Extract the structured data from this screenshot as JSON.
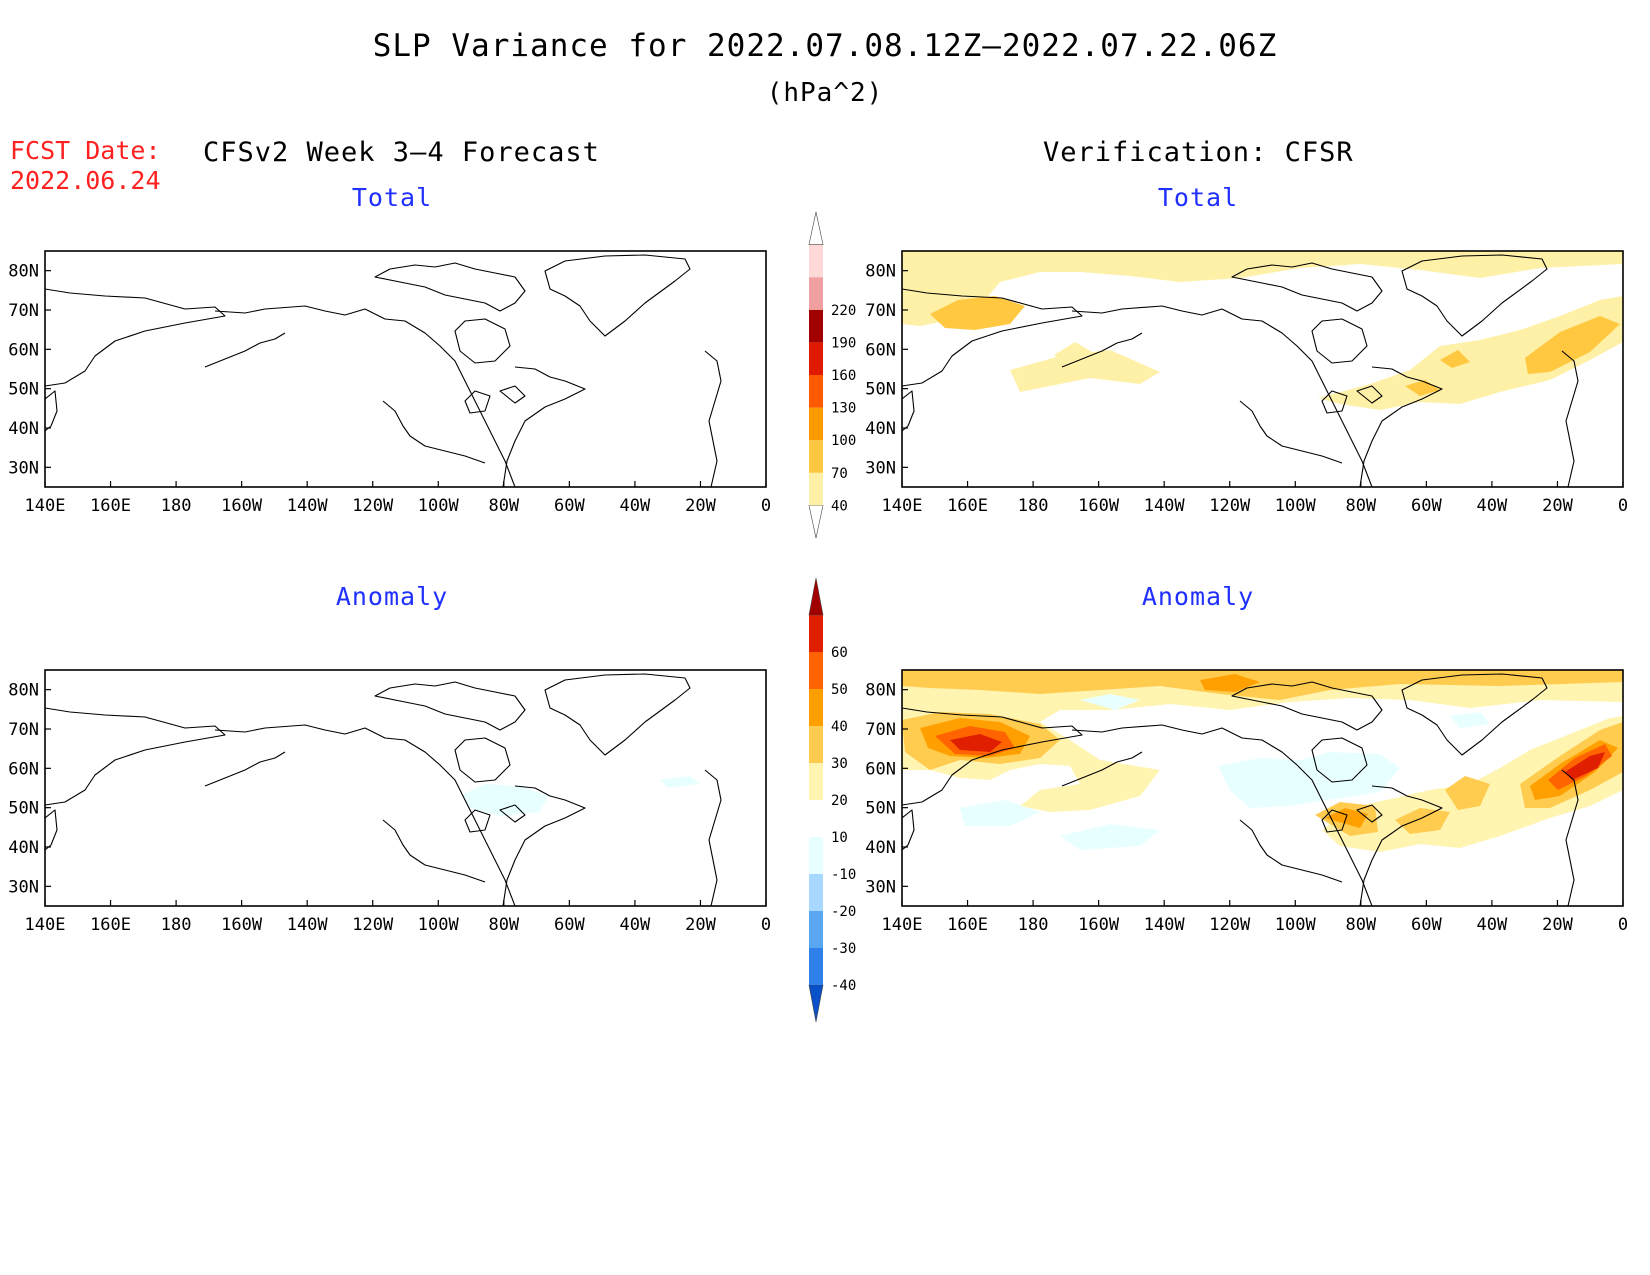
{
  "title": "SLP Variance for 2022.07.08.12Z–2022.07.22.06Z",
  "units": "(hPa^2)",
  "fcst_date": {
    "label": "FCST Date:",
    "date": "2022.06.24"
  },
  "left_header": "CFSv2 Week 3–4 Forecast",
  "right_header": "Verification: CFSR",
  "panel_titles": {
    "tl": "Total",
    "tr": "Total",
    "bl": "Anomaly",
    "br": "Anomaly"
  },
  "map_axes": {
    "lon_labels": [
      "140E",
      "160E",
      "180",
      "160W",
      "140W",
      "120W",
      "100W",
      "80W",
      "60W",
      "40W",
      "20W",
      "0"
    ],
    "lat_labels": [
      "80N",
      "70N",
      "60N",
      "50N",
      "40N",
      "30N"
    ],
    "lon_range": "140E to 0",
    "lat_range": "25N to 85N"
  },
  "total_colorbar": {
    "levels": [
      "40",
      "70",
      "100",
      "130",
      "160",
      "190",
      "220"
    ],
    "colors": [
      "#ffffff",
      "#fff0a8",
      "#ffc840",
      "#ff9a00",
      "#ff5a00",
      "#e01a00",
      "#a00000",
      "#f0a0a0",
      "#ffd8d8",
      "#ffffff"
    ]
  },
  "anomaly_colorbar": {
    "levels": [
      "-40",
      "-30",
      "-20",
      "-10",
      "10",
      "20",
      "30",
      "40",
      "50",
      "60"
    ],
    "colors": [
      "#0a50c8",
      "#2f80e8",
      "#5aa6f0",
      "#a8d8ff",
      "#e8ffff",
      "#ffffff",
      "#fff4b0",
      "#ffcc50",
      "#ffa000",
      "#ff6400",
      "#e01e00",
      "#a00000"
    ]
  },
  "colors": {
    "map_frame": "#000000",
    "panel_title": "#2030ff",
    "fcst_date": "#ff2020"
  }
}
